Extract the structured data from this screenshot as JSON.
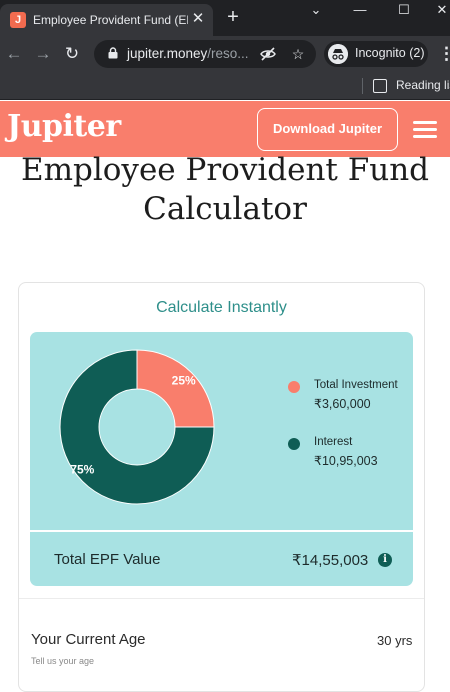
{
  "browser": {
    "tab_title": "Employee Provident Fund (EPF",
    "tab_favicon": "J",
    "url_host": "jupiter.money",
    "url_path": "/reso...",
    "incognito_label": "Incognito (2)",
    "reading_list_label": "Reading lis",
    "icons": [
      "back-arrow-icon",
      "forward-arrow-icon",
      "reload-icon",
      "lock-icon",
      "eye-off-icon",
      "star-icon",
      "incognito-icon",
      "kebab-menu-icon",
      "reading-list-icon",
      "minimize-icon",
      "maximize-icon",
      "close-icon",
      "chevron-down-icon"
    ]
  },
  "header": {
    "logo": "Jupiter",
    "download_button": "Download Jupiter",
    "brand_color": "#f97e6c"
  },
  "page": {
    "title_line1": "Employee Provident Fund",
    "title_line2": "Calculator"
  },
  "calculator": {
    "heading": "Calculate Instantly",
    "legend": [
      {
        "label": "Total Investment",
        "value": "₹3,60,000",
        "color": "#f97e6c"
      },
      {
        "label": "Interest",
        "value": "₹10,95,003",
        "color": "#0f5d55"
      }
    ],
    "total_label": "Total EPF Value",
    "total_value": "₹14,55,003",
    "age_label": "Your Current Age",
    "age_hint": "Tell us your age",
    "age_value": "30 yrs"
  },
  "chart_data": {
    "type": "pie",
    "categories": [
      "Total Investment",
      "Interest"
    ],
    "values": [
      25,
      75
    ],
    "labels": [
      "25%",
      "75%"
    ],
    "colors": [
      "#f97e6c",
      "#0f5d55"
    ],
    "donut": true
  }
}
